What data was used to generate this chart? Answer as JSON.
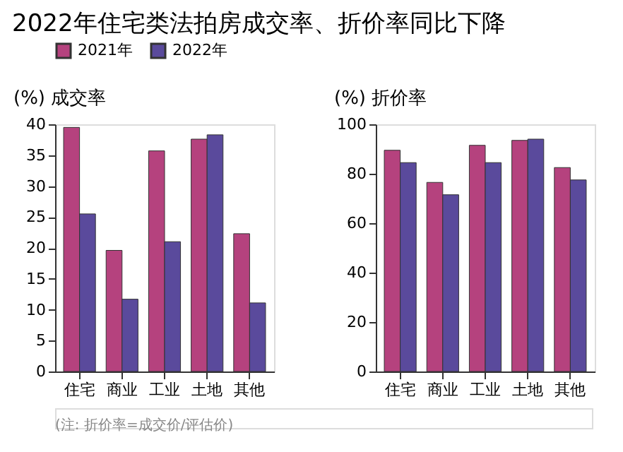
{
  "chart_data": [
    {
      "type": "bar",
      "title": "2022年住宅类法拍房成交率、折价率同比下降",
      "ylabel": "(%) 成交率",
      "categories": [
        "住宅",
        "商业",
        "工业",
        "土地",
        "其他"
      ],
      "series": [
        {
          "name": "2021年",
          "color": "#b5427e",
          "values": [
            39.5,
            19.6,
            35.7,
            37.6,
            22.3
          ]
        },
        {
          "name": "2022年",
          "color": "#5a4a9c",
          "values": [
            25.5,
            11.7,
            21.0,
            38.3,
            11.1
          ]
        }
      ],
      "ylim": [
        0,
        40
      ],
      "yticks": [
        0,
        5,
        10,
        15,
        20,
        25,
        30,
        35,
        40
      ],
      "grid": false,
      "legend": "top"
    },
    {
      "type": "bar",
      "ylabel": "(%) 折价率",
      "categories": [
        "住宅",
        "商业",
        "工业",
        "土地",
        "其他"
      ],
      "series": [
        {
          "name": "2021年",
          "color": "#b5427e",
          "values": [
            89.5,
            76.5,
            91.5,
            93.5,
            82.5
          ]
        },
        {
          "name": "2022年",
          "color": "#5a4a9c",
          "values": [
            84.5,
            71.5,
            84.5,
            94,
            77.5
          ]
        }
      ],
      "ylim": [
        0,
        100
      ],
      "yticks": [
        0,
        20,
        40,
        60,
        80,
        100
      ],
      "grid": false,
      "legend": false,
      "annotations": [
        "(注: 折价率=成交价/评估价)"
      ]
    }
  ]
}
